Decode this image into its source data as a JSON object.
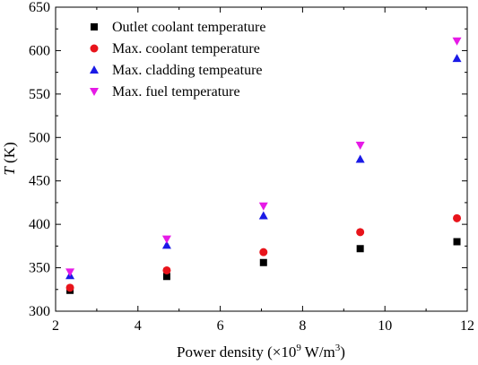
{
  "chart_data": {
    "type": "scatter",
    "xlabel": "Power density (×10⁹ W/m³)",
    "xlabel_parts": {
      "pre": "Power density (×10",
      "exp1": "9",
      "mid": " W/m",
      "exp2": "3",
      "post": ")"
    },
    "ylabel": "T (K)",
    "ylabel_parts": {
      "var": "T",
      "unit": " (K)"
    },
    "xlim": [
      2,
      12
    ],
    "ylim": [
      300,
      650
    ],
    "xticks": [
      2,
      4,
      6,
      8,
      10,
      12
    ],
    "yticks": [
      300,
      350,
      400,
      450,
      500,
      550,
      600,
      650
    ],
    "grid": false,
    "legend_position": "top-left",
    "series": [
      {
        "name": "Outlet coolant temperature",
        "marker": "square",
        "color": "#000000",
        "x": [
          2.35,
          4.7,
          7.05,
          9.4,
          11.75
        ],
        "y": [
          324,
          340,
          356,
          372,
          380
        ]
      },
      {
        "name": "Max. coolant temperature",
        "marker": "circle",
        "color": "#e8141b",
        "x": [
          2.35,
          4.7,
          7.05,
          9.4,
          11.75
        ],
        "y": [
          327,
          347,
          368,
          391,
          407
        ]
      },
      {
        "name": "Max. cladding tempeature",
        "marker": "triangle-up",
        "color": "#1a1ae6",
        "x": [
          2.35,
          4.7,
          7.05,
          9.4,
          11.75
        ],
        "y": [
          341,
          376,
          410,
          475,
          591
        ]
      },
      {
        "name": "Max. fuel temperature",
        "marker": "triangle-down",
        "color": "#e61ae6",
        "x": [
          2.35,
          4.7,
          7.05,
          9.4,
          11.75
        ],
        "y": [
          345,
          383,
          421,
          491,
          611
        ]
      }
    ]
  }
}
